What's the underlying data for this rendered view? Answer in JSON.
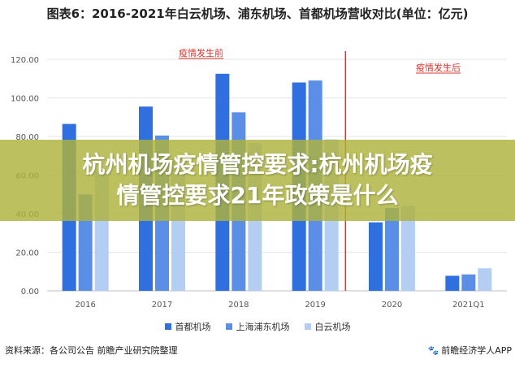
{
  "title": "图表6：2016-2021年白云机场、浦东机场、首都机场营收对比(单位：亿元)",
  "footer": {
    "source": "资料来源：各公司公告 前瞻产业研究院整理",
    "brand": "前瞻经济学人APP",
    "brand_icon": "paw-icon"
  },
  "banner": {
    "line1": "杭州机场疫情管控要求:杭州机场疫",
    "line2": "情管控要求21年政策是什么"
  },
  "annotations": {
    "before": "疫情发生前",
    "after": "疫情发生后",
    "color": "#d9342b"
  },
  "chart_data": {
    "type": "bar",
    "categories": [
      "2016",
      "2017",
      "2018",
      "2019",
      "2020",
      "2021Q1"
    ],
    "series": [
      {
        "name": "首都机场",
        "color": "#2f6fe0",
        "values": [
          86.5,
          95.5,
          112.5,
          108.0,
          35.5,
          7.8
        ]
      },
      {
        "name": "上海浦东机场",
        "color": "#5b8ee6",
        "values": [
          50.0,
          80.5,
          92.5,
          109.0,
          43.0,
          8.5
        ]
      },
      {
        "name": "白云机场",
        "color": "#b4cdf2",
        "values": [
          62.0,
          69.0,
          76.5,
          78.5,
          44.0,
          11.7
        ]
      }
    ],
    "ylim": [
      0,
      120
    ],
    "yticks": [
      "0.00",
      "20.00",
      "40.00",
      "60.00",
      "80.00",
      "100.00",
      "120.00"
    ],
    "grid": true,
    "legend": "bottom"
  }
}
